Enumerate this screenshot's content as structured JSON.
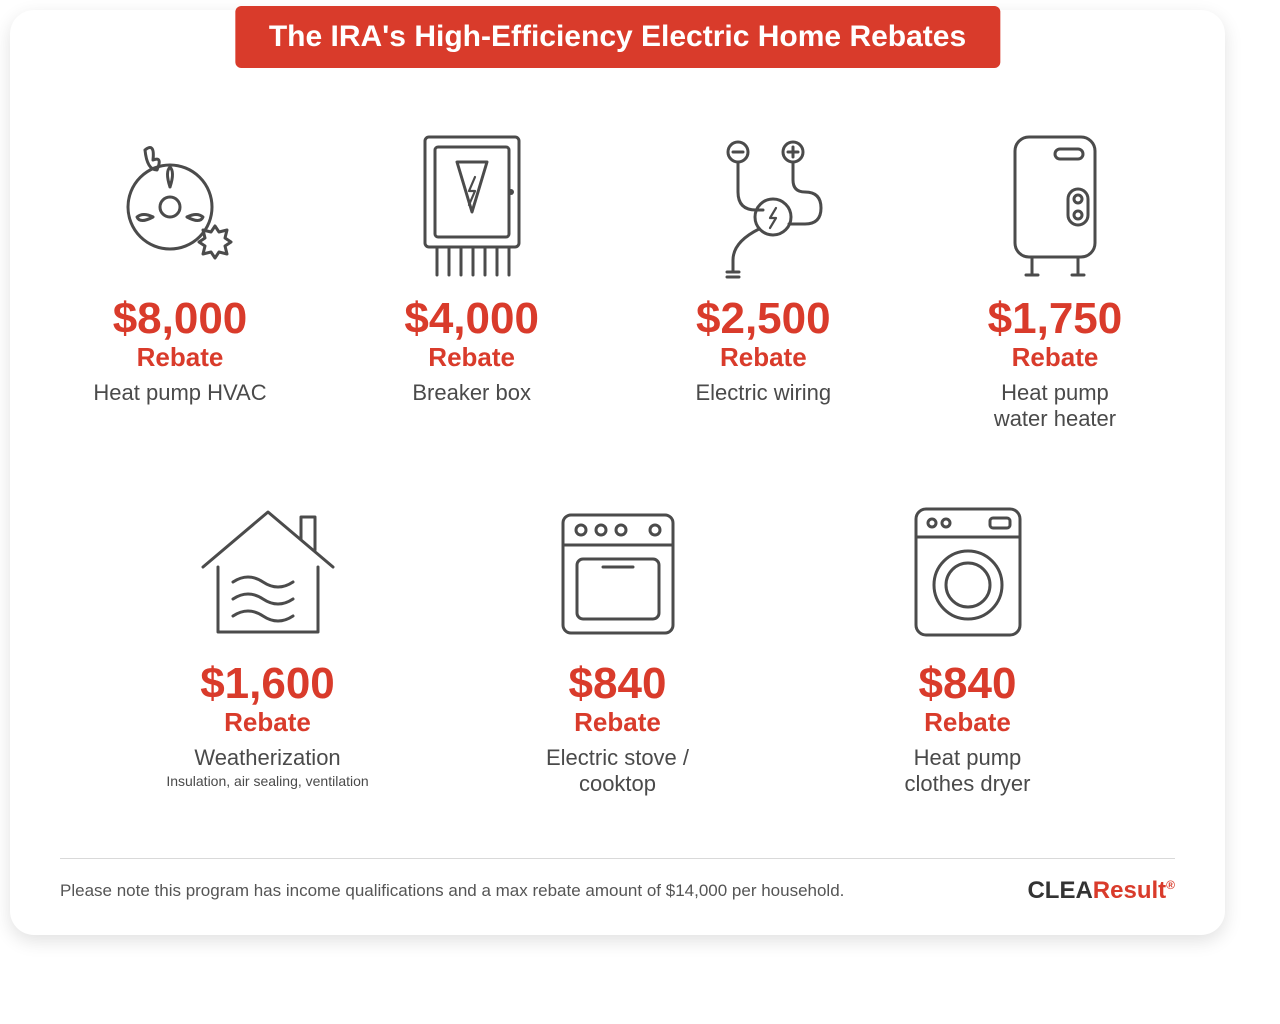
{
  "title": "The IRA's High-Efficiency Electric Home Rebates",
  "colors": {
    "accent": "#d93b2b",
    "icon_stroke": "#4b4b4b",
    "text": "#4a4a4a",
    "card_bg": "#ffffff",
    "divider": "#d9d9d9"
  },
  "rebate_label": "Rebate",
  "items": [
    {
      "amount": "$8,000",
      "desc": "Heat pump HVAC",
      "sub": "",
      "icon": "hvac"
    },
    {
      "amount": "$4,000",
      "desc": "Breaker box",
      "sub": "",
      "icon": "breaker"
    },
    {
      "amount": "$2,500",
      "desc": "Electric wiring",
      "sub": "",
      "icon": "wiring"
    },
    {
      "amount": "$1,750",
      "desc": "Heat pump\nwater heater",
      "sub": "",
      "icon": "waterheater"
    },
    {
      "amount": "$1,600",
      "desc": "Weatherization",
      "sub": "Insulation, air sealing, ventilation",
      "icon": "house"
    },
    {
      "amount": "$840",
      "desc": "Electric stove /\ncooktop",
      "sub": "",
      "icon": "stove"
    },
    {
      "amount": "$840",
      "desc": "Heat pump\nclothes dryer",
      "sub": "",
      "icon": "dryer"
    }
  ],
  "footer_note": "Please note this program has income qualifications and a max rebate amount of $14,000 per household.",
  "brand": {
    "part1": "CLEA",
    "part2": "Result"
  }
}
